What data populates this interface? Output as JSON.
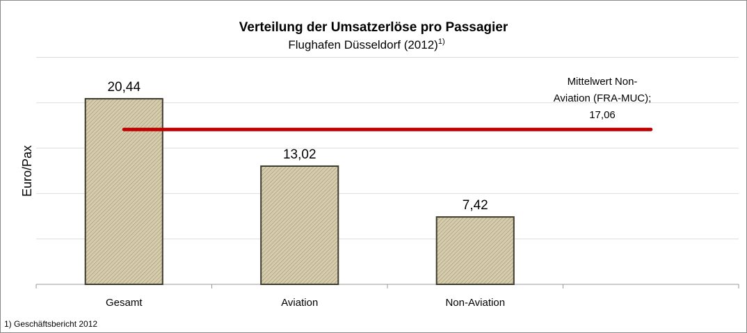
{
  "chart_data": {
    "type": "bar",
    "title": "Verteilung der Umsatzerlöse pro Passagier",
    "subtitle": "Flughafen Düsseldorf (2012)",
    "subtitle_note": "1)",
    "ylabel": "Euro/Pax",
    "categories": [
      "Gesamt",
      "Aviation",
      "Non-Aviation",
      null
    ],
    "values": [
      20.44,
      13.02,
      7.42,
      null
    ],
    "value_labels": [
      "20,44",
      "13,02",
      "7,42",
      null
    ],
    "color": "#d6ccae",
    "ylim": [
      0,
      25
    ],
    "yticks": [
      0,
      5,
      10,
      15,
      20,
      25
    ],
    "grid": true,
    "reference_line": {
      "text": [
        "Mittelwert Non-",
        "Aviation (FRA-MUC);"
      ],
      "value": 17.06,
      "label": "17,06",
      "color": "#c00000"
    },
    "footnote": "1) Geschäftsbericht 2012"
  }
}
